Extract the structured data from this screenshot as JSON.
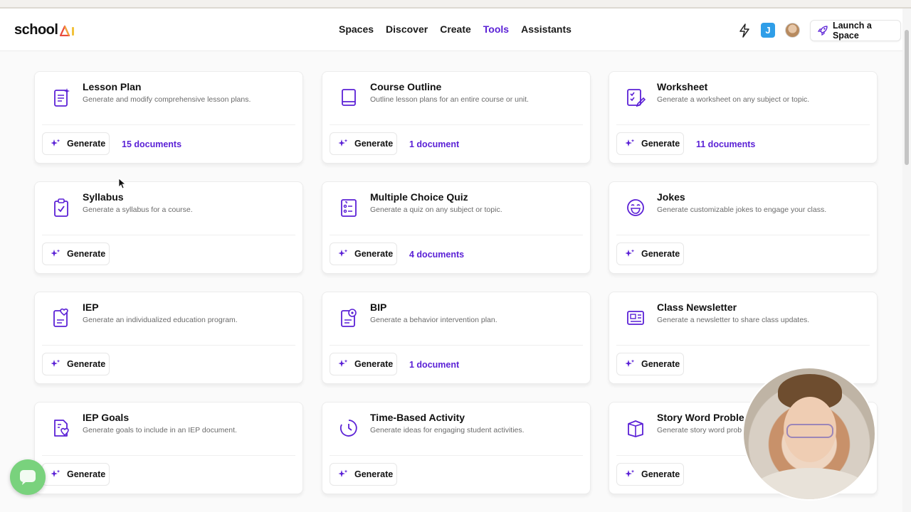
{
  "app": {
    "logo_text": "school"
  },
  "nav": {
    "links": [
      {
        "label": "Spaces",
        "active": false
      },
      {
        "label": "Discover",
        "active": false
      },
      {
        "label": "Create",
        "active": false
      },
      {
        "label": "Tools",
        "active": true
      },
      {
        "label": "Assistants",
        "active": false
      }
    ],
    "user_initial": "J",
    "launch_label": "Launch a Space"
  },
  "colors": {
    "accent": "#5b21d6",
    "chat": "#79d27d",
    "badge": "#2f9ee8"
  },
  "generate_label": "Generate",
  "tools": [
    {
      "title": "Lesson Plan",
      "desc": "Generate and modify comprehensive lesson plans.",
      "docs": "15 documents",
      "icon": "lesson-plan-icon"
    },
    {
      "title": "Course Outline",
      "desc": "Outline lesson plans for an entire course or unit.",
      "docs": "1 document",
      "icon": "book-icon"
    },
    {
      "title": "Worksheet",
      "desc": "Generate a worksheet on any subject or topic.",
      "docs": "11 documents",
      "icon": "worksheet-icon"
    },
    {
      "title": "Syllabus",
      "desc": "Generate a syllabus for a course.",
      "docs": "",
      "icon": "clipboard-check-icon"
    },
    {
      "title": "Multiple Choice Quiz",
      "desc": "Generate a quiz on any subject or topic.",
      "docs": "4 documents",
      "icon": "quiz-icon"
    },
    {
      "title": "Jokes",
      "desc": "Generate customizable jokes to engage your class.",
      "docs": "",
      "icon": "laugh-face-icon"
    },
    {
      "title": "IEP",
      "desc": "Generate an individualized education program.",
      "docs": "",
      "icon": "heart-document-icon"
    },
    {
      "title": "BIP",
      "desc": "Generate a behavior intervention plan.",
      "docs": "1 document",
      "icon": "flower-document-icon"
    },
    {
      "title": "Class Newsletter",
      "desc": "Generate a newsletter to share class updates.",
      "docs": "",
      "icon": "newsletter-icon"
    },
    {
      "title": "IEP Goals",
      "desc": "Generate goals to include in an IEP document.",
      "docs": "",
      "icon": "heart-goals-icon"
    },
    {
      "title": "Time-Based Activity",
      "desc": "Generate ideas for engaging student activities.",
      "docs": "",
      "icon": "clock-icon"
    },
    {
      "title": "Story Word Problem",
      "desc": "Generate story word prob",
      "docs": "",
      "icon": "box-icon"
    }
  ]
}
